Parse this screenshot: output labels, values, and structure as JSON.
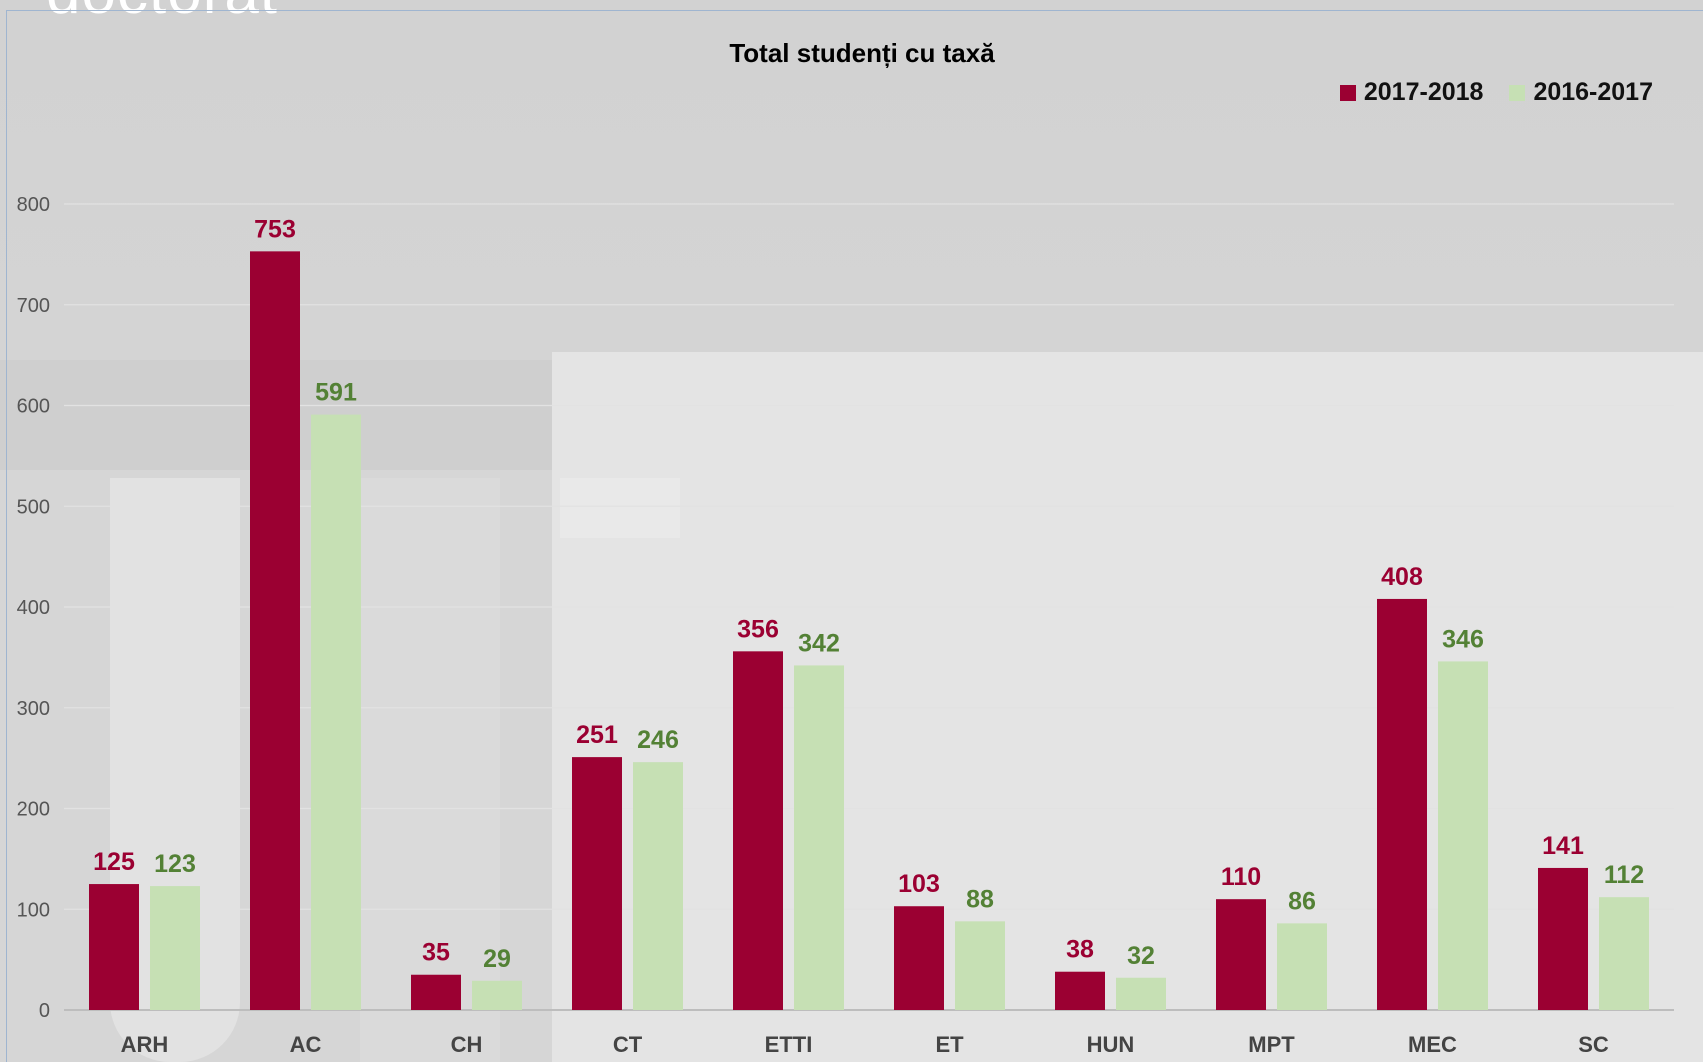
{
  "slide": {
    "title": "doctorat"
  },
  "chart_data": {
    "type": "bar",
    "title": "Total studenți cu taxă",
    "categories": [
      "ARH",
      "AC",
      "CH",
      "CT",
      "ETTI",
      "ET",
      "HUN",
      "MPT",
      "MEC",
      "SC"
    ],
    "series": [
      {
        "name": "2017-2018",
        "color": "#9b0032",
        "label_color": "#9b0032",
        "values": [
          125,
          753,
          35,
          251,
          356,
          103,
          38,
          110,
          408,
          141
        ]
      },
      {
        "name": "2016-2017",
        "color": "#c6e0b4",
        "label_color": "#538135",
        "values": [
          123,
          591,
          29,
          246,
          342,
          88,
          32,
          86,
          346,
          112
        ]
      }
    ],
    "ylim": [
      0,
      800
    ],
    "yticks": [
      0,
      100,
      200,
      300,
      400,
      500,
      600,
      700,
      800
    ],
    "grid": true,
    "legend_position": "top-right",
    "data_labels": true
  }
}
